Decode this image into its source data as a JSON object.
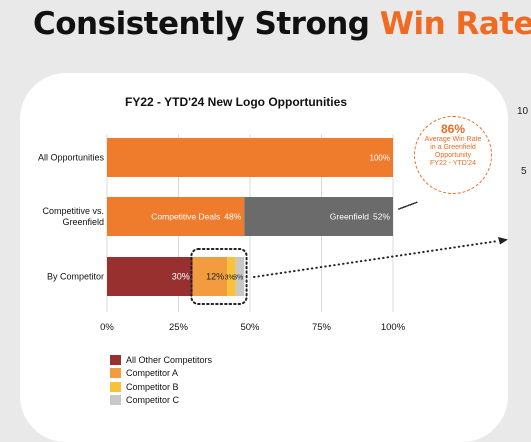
{
  "headline": {
    "main": "Consistently Strong",
    "accent": "Win Rates"
  },
  "edge_ticks": [
    "10",
    "5"
  ],
  "callout": {
    "value": "86%",
    "text": "Average Win Rate in a Greenfield Opportunity",
    "range": "FY22 - YTD'24"
  },
  "colors": {
    "orange": "#ef7b2d",
    "gray": "#6b6b6b",
    "maroon": "#98302f",
    "competitor_a": "#f29b3f",
    "competitor_b": "#f7c13b",
    "competitor_c": "#c8c8c8",
    "accent": "#ef6b22"
  },
  "chart_data": {
    "type": "bar",
    "orientation": "horizontal",
    "stacked": true,
    "title": "FY22 - YTD'24 New Logo Opportunities",
    "xlim": [
      0,
      100
    ],
    "xticks": [
      "0%",
      "25%",
      "50%",
      "75%",
      "100%"
    ],
    "xtick_values": [
      0,
      25,
      50,
      75,
      100
    ],
    "grid": true,
    "categories": [
      "All Opportunities",
      "Competitive vs. Greenfield",
      "By Competitor"
    ],
    "rows": [
      {
        "category": "All Opportunities",
        "segments": [
          {
            "name": "",
            "value": 100,
            "label": "100%",
            "color": "#ef7b2d"
          }
        ]
      },
      {
        "category": "Competitive vs. Greenfield",
        "segments": [
          {
            "name": "Competitive Deals",
            "value": 48,
            "label": "48%",
            "color": "#ef7b2d"
          },
          {
            "name": "Greenfield",
            "value": 52,
            "label": "52%",
            "color": "#6b6b6b"
          }
        ]
      },
      {
        "category": "By Competitor",
        "segments": [
          {
            "name": "All Other Competitors",
            "value": 30,
            "label": "30%",
            "color": "#98302f"
          },
          {
            "name": "Competitor A",
            "value": 12,
            "label": "12%",
            "color": "#f29b3f"
          },
          {
            "name": "Competitor B",
            "value": 3,
            "label": "3%",
            "color": "#f7c13b"
          },
          {
            "name": "Competitor C",
            "value": 3,
            "label": "3%",
            "color": "#c8c8c8"
          }
        ]
      }
    ],
    "legend": {
      "position": "bottom-left",
      "items": [
        {
          "label": "All Other Competitors",
          "color": "#98302f"
        },
        {
          "label": "Competitor A",
          "color": "#f29b3f"
        },
        {
          "label": "Competitor B",
          "color": "#f7c13b"
        },
        {
          "label": "Competitor C",
          "color": "#c8c8c8"
        }
      ]
    }
  }
}
